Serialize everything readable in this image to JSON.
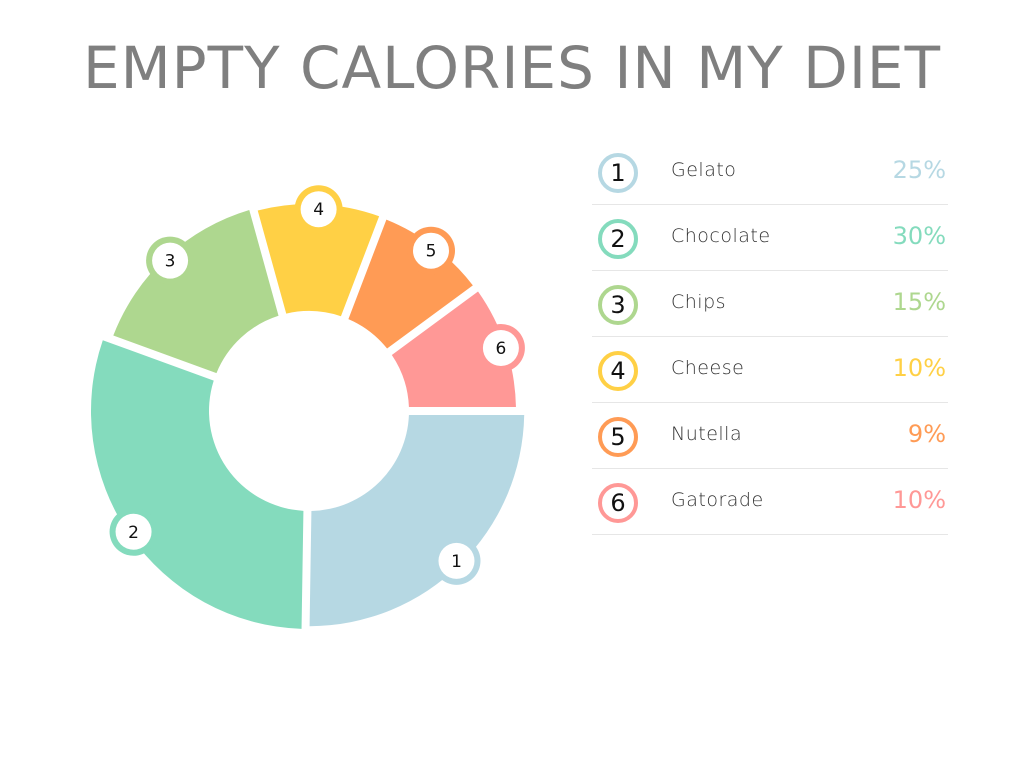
{
  "title": "EMPTY CALORIES IN MY DIET",
  "chart_data": {
    "type": "pie",
    "variant": "donut",
    "title": "EMPTY CALORIES IN MY DIET",
    "categories": [
      "Gelato",
      "Chocolate",
      "Chips",
      "Cheese",
      "Nutella",
      "Gatorade"
    ],
    "values": [
      25,
      30,
      15,
      10,
      9,
      10
    ],
    "labels": [
      "25%",
      "30%",
      "15%",
      "10%",
      "9%",
      "10%"
    ],
    "markers": [
      "1",
      "2",
      "3",
      "4",
      "5",
      "6"
    ],
    "colors": [
      "#b6d8e3",
      "#84dbbd",
      "#aed78f",
      "#ffd045",
      "#ff9b55",
      "#ff9896"
    ],
    "legend_position": "right"
  }
}
